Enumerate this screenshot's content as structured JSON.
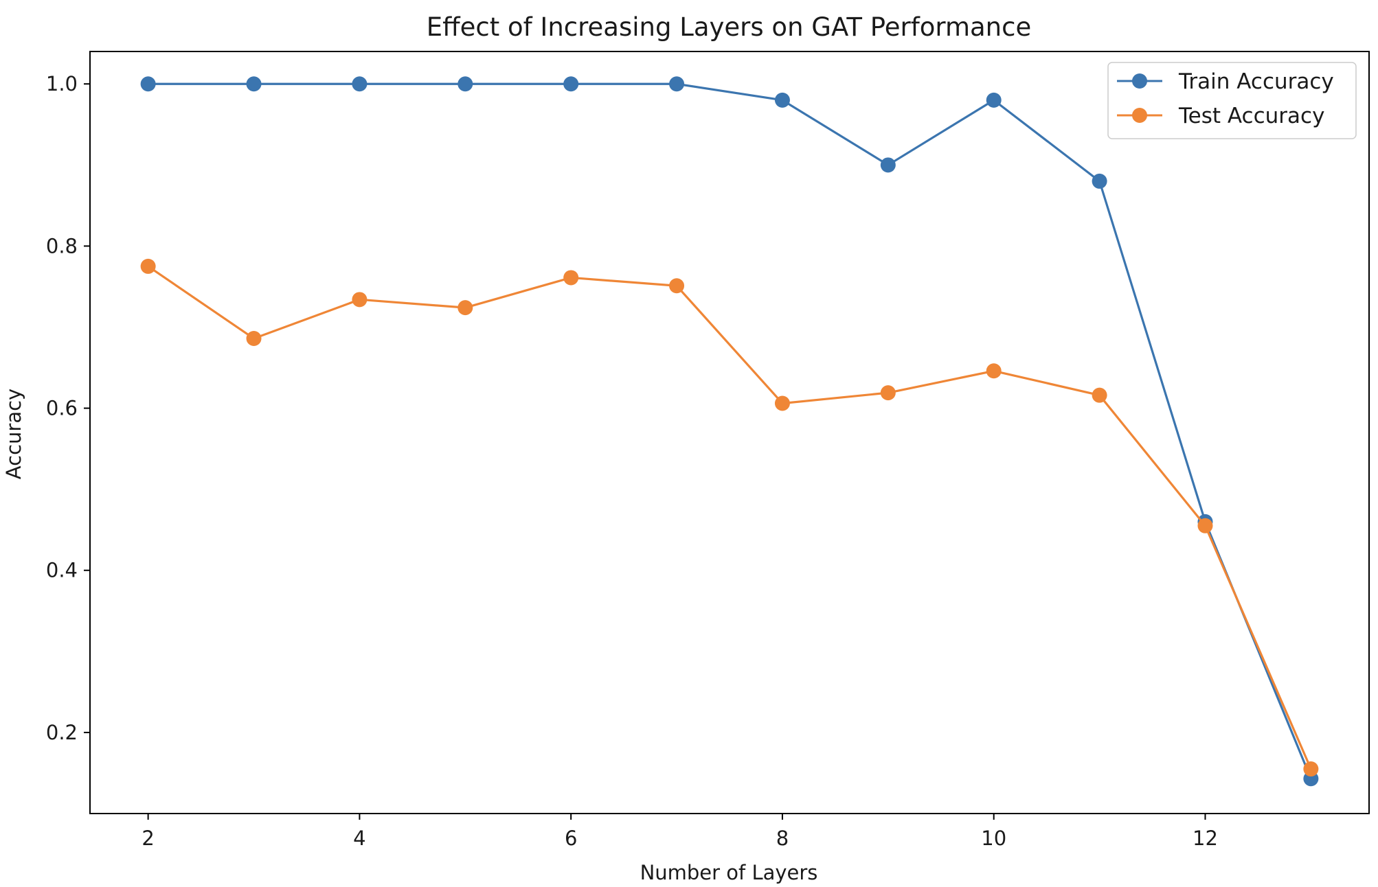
{
  "chart_data": {
    "type": "line",
    "title": "Effect of Increasing Layers on GAT Performance",
    "xlabel": "Number of Layers",
    "ylabel": "Accuracy",
    "x": [
      2,
      3,
      4,
      5,
      6,
      7,
      8,
      9,
      10,
      11,
      12,
      13
    ],
    "xlim": [
      1.45,
      13.55
    ],
    "ylim": [
      0.1,
      1.04
    ],
    "xticks": [
      2,
      4,
      6,
      8,
      10,
      12
    ],
    "yticks": [
      0.2,
      0.4,
      0.6,
      0.8,
      1.0
    ],
    "xtick_labels": [
      "2",
      "4",
      "6",
      "8",
      "10",
      "12"
    ],
    "ytick_labels": [
      "0.2",
      "0.4",
      "0.6",
      "0.8",
      "1.0"
    ],
    "grid": false,
    "legend_position": "top-right",
    "series": [
      {
        "name": "Train Accuracy",
        "color": "#3b75af",
        "marker": "circle",
        "values": [
          1.0,
          1.0,
          1.0,
          1.0,
          1.0,
          1.0,
          0.98,
          0.9,
          0.98,
          0.88,
          0.46,
          0.143
        ]
      },
      {
        "name": "Test Accuracy",
        "color": "#ef8636",
        "marker": "circle",
        "values": [
          0.775,
          0.686,
          0.734,
          0.724,
          0.761,
          0.751,
          0.606,
          0.619,
          0.646,
          0.616,
          0.455,
          0.155
        ]
      }
    ]
  }
}
